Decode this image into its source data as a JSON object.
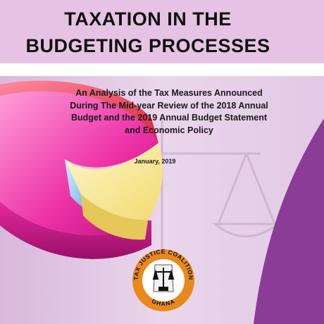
{
  "document": {
    "title_line1": "TAXATION IN THE",
    "title_line2": "BUDGETING PROCESSES",
    "subtitle_lines": [
      "An Analysis of the Tax Measures Announced",
      "During The Mid-year Review of the 2018 Annual",
      "Budget and the 2019 Annual Budget Statement",
      "and Economic Policy"
    ],
    "date": "January, 2019"
  },
  "logo": {
    "org_name": "TAX JUSTICE COALITION",
    "country": "GHANA",
    "icon": "scales-of-justice-icon"
  },
  "colors": {
    "title_band": "#e6c3e4",
    "purple_accent": "#8a3c97",
    "lavender_bg": "#e4cbe6",
    "logo_orange": "#e8891c"
  }
}
